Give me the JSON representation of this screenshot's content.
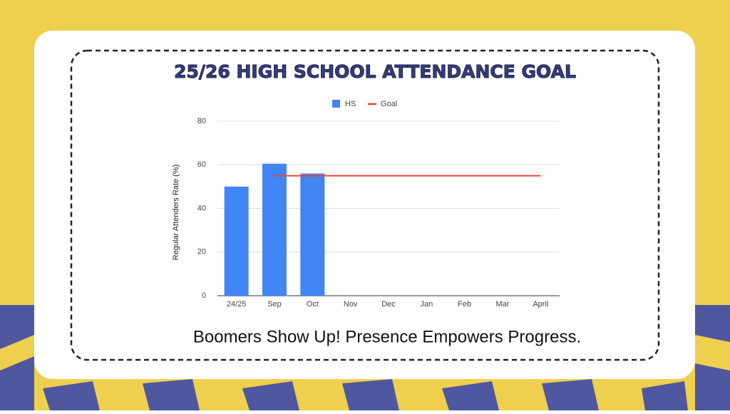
{
  "chart_data": {
    "type": "bar",
    "title": "25/26 HIGH SCHOOL ATTENDANCE GOAL",
    "subtitle": "Boomers Show Up! Presence Empowers Progress.",
    "y_label": "Regular Attenders Rate (%)",
    "categories": [
      "24/25",
      "Sep",
      "Oct",
      "Nov",
      "Dec",
      "Jan",
      "Feb",
      "Mar",
      "April"
    ],
    "series": [
      {
        "name": "HS",
        "type": "bar",
        "color": "#4285f4",
        "values": [
          50,
          60.5,
          56,
          null,
          null,
          null,
          null,
          null,
          null
        ]
      },
      {
        "name": "Goal",
        "type": "line",
        "color": "#ea4335",
        "values": [
          null,
          55,
          55,
          55,
          55,
          55,
          55,
          55,
          55
        ]
      }
    ],
    "ylim": [
      0,
      80
    ],
    "yticks": [
      0,
      20,
      40,
      60,
      80
    ],
    "grid": true,
    "legend": "top"
  }
}
